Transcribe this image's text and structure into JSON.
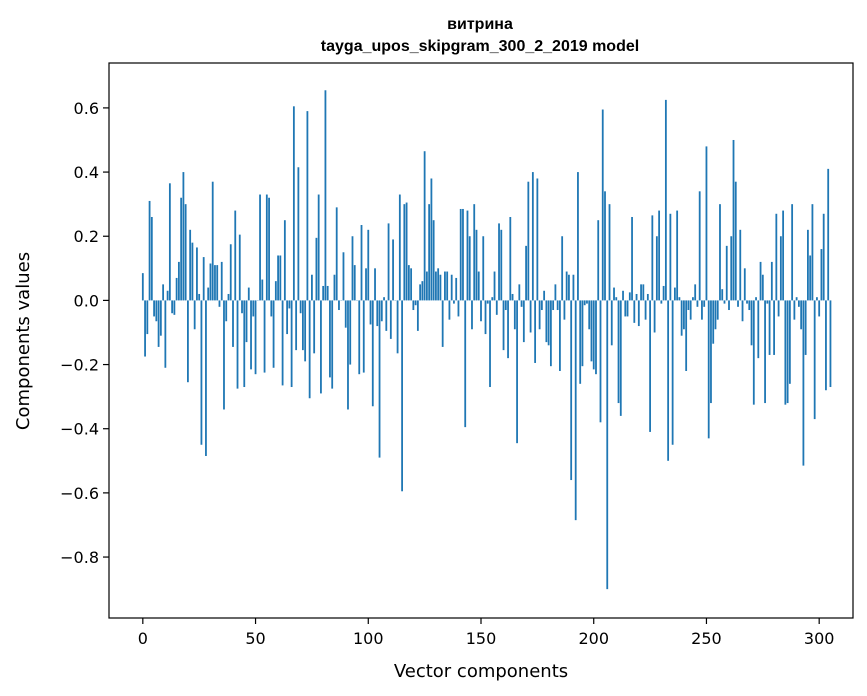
{
  "chart_data": {
    "type": "bar",
    "title": "витрина",
    "subtitle": "tayga_upos_skipgram_300_2_2019 model",
    "xlabel": "Vector components",
    "ylabel": "Components values",
    "xlim": [
      -15,
      315
    ],
    "ylim": [
      -0.99,
      0.74
    ],
    "xticks": [
      0,
      50,
      100,
      150,
      200,
      250,
      300
    ],
    "xtick_labels": [
      "0",
      "50",
      "100",
      "150",
      "200",
      "250",
      "300"
    ],
    "yticks": [
      -0.8,
      -0.6,
      -0.4,
      -0.2,
      0.0,
      0.2,
      0.4,
      0.6
    ],
    "ytick_labels": [
      "−0.8",
      "−0.6",
      "−0.4",
      "−0.2",
      "0.0",
      "0.2",
      "0.4",
      "0.6"
    ],
    "bar_color": "#1f77b4",
    "grid": false,
    "values": [
      0.085,
      -0.175,
      -0.105,
      0.31,
      0.26,
      -0.05,
      -0.065,
      -0.145,
      -0.11,
      0.05,
      -0.21,
      0.03,
      0.365,
      -0.04,
      -0.045,
      0.07,
      0.12,
      0.32,
      0.4,
      0.3,
      -0.255,
      0.22,
      0.18,
      -0.09,
      0.165,
      0.02,
      -0.45,
      0.135,
      -0.485,
      0.04,
      0.115,
      0.37,
      0.11,
      0.11,
      -0.02,
      0.12,
      -0.34,
      -0.065,
      0.02,
      0.175,
      -0.145,
      0.28,
      -0.275,
      0.205,
      -0.04,
      -0.27,
      -0.13,
      0.04,
      -0.215,
      -0.05,
      -0.23,
      0.0,
      0.33,
      0.065,
      -0.225,
      0.33,
      0.32,
      -0.05,
      -0.21,
      0.06,
      0.14,
      0.14,
      -0.265,
      0.25,
      -0.105,
      -0.025,
      -0.27,
      0.605,
      -0.155,
      0.415,
      -0.04,
      -0.155,
      -0.19,
      0.59,
      -0.305,
      0.08,
      -0.165,
      0.195,
      0.33,
      -0.29,
      0.045,
      0.655,
      0.045,
      -0.24,
      -0.275,
      0.08,
      0.29,
      -0.03,
      0.0,
      0.15,
      -0.085,
      -0.34,
      -0.2,
      0.2,
      0.11,
      0.0,
      -0.23,
      0.235,
      -0.225,
      0.1,
      0.22,
      -0.075,
      -0.33,
      0.1,
      -0.08,
      -0.49,
      -0.065,
      0.01,
      -0.095,
      0.24,
      -0.12,
      0.19,
      0.0,
      -0.165,
      0.33,
      -0.595,
      0.3,
      0.305,
      0.11,
      0.1,
      -0.03,
      -0.015,
      -0.095,
      0.05,
      0.06,
      0.465,
      0.09,
      0.3,
      0.38,
      0.25,
      0.09,
      0.1,
      0.08,
      -0.145,
      0.09,
      0.09,
      -0.06,
      0.08,
      -0.01,
      0.07,
      -0.05,
      0.285,
      0.285,
      -0.395,
      0.28,
      0.2,
      -0.09,
      0.3,
      0.22,
      0.09,
      -0.065,
      0.2,
      -0.105,
      -0.01,
      -0.27,
      0.01,
      0.09,
      -0.045,
      0.24,
      0.22,
      -0.155,
      -0.03,
      -0.18,
      0.26,
      0.02,
      -0.09,
      -0.445,
      0.05,
      -0.02,
      -0.13,
      0.17,
      0.37,
      -0.1,
      0.4,
      -0.195,
      0.38,
      -0.09,
      -0.03,
      0.03,
      -0.13,
      -0.14,
      -0.205,
      -0.03,
      0.05,
      -0.03,
      -0.22,
      0.2,
      -0.06,
      0.09,
      0.08,
      -0.56,
      0.08,
      -0.685,
      0.4,
      -0.26,
      -0.205,
      -0.015,
      -0.01,
      -0.09,
      -0.19,
      -0.215,
      -0.23,
      0.25,
      -0.38,
      0.595,
      0.34,
      -0.9,
      0.3,
      -0.14,
      0.04,
      0.01,
      -0.32,
      -0.36,
      0.03,
      -0.05,
      -0.05,
      0.025,
      0.26,
      -0.07,
      0.02,
      -0.08,
      0.05,
      0.05,
      -0.06,
      0.02,
      -0.41,
      0.265,
      -0.1,
      0.2,
      0.28,
      -0.01,
      0.045,
      0.625,
      -0.5,
      0.27,
      -0.45,
      0.04,
      0.28,
      0.01,
      -0.11,
      -0.09,
      -0.22,
      -0.03,
      -0.06,
      0.01,
      0.05,
      -0.02,
      0.34,
      -0.06,
      -0.02,
      0.48,
      -0.43,
      -0.32,
      -0.135,
      -0.09,
      -0.06,
      0.3,
      0.035,
      -0.01,
      0.17,
      -0.03,
      0.2,
      0.5,
      0.37,
      -0.02,
      0.22,
      -0.065,
      0.1,
      -0.01,
      -0.03,
      -0.14,
      -0.325,
      0.01,
      -0.18,
      0.12,
      0.08,
      -0.32,
      -0.01,
      -0.17,
      0.12,
      -0.17,
      0.27,
      -0.05,
      0.2,
      0.28,
      -0.325,
      -0.32,
      -0.26,
      0.3,
      -0.06,
      0.01,
      -0.02,
      -0.09,
      -0.515,
      -0.17,
      0.22,
      0.14,
      0.3,
      -0.37,
      0.01,
      -0.05,
      0.16,
      0.27,
      -0.28,
      0.41,
      -0.27
    ]
  }
}
